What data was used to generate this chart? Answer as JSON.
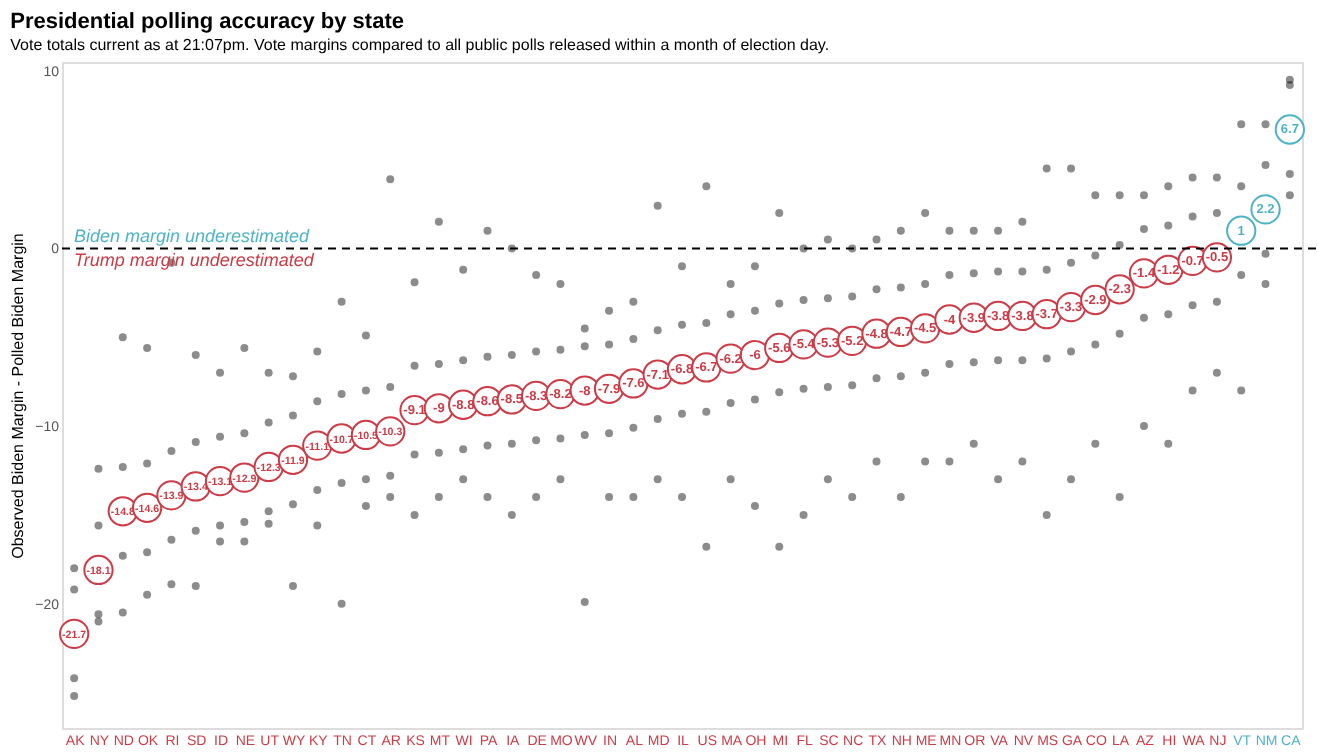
{
  "chart_data": {
    "type": "scatter",
    "title": "Presidential polling accuracy by state",
    "subtitle": "Vote totals current as at 21:07pm. Vote margins compared to all public polls released within a month of election day.",
    "ylabel": "Observed Biden Margin - Polled Biden Margin",
    "categories": [
      "AK",
      "NY",
      "ND",
      "OK",
      "RI",
      "SD",
      "ID",
      "NE",
      "UT",
      "WY",
      "KY",
      "TN",
      "CT",
      "AR",
      "KS",
      "MT",
      "WI",
      "PA",
      "IA",
      "DE",
      "MO",
      "WV",
      "IN",
      "AL",
      "MD",
      "IL",
      "US",
      "MA",
      "OH",
      "MI",
      "FL",
      "SC",
      "NC",
      "TX",
      "NH",
      "ME",
      "MN",
      "OR",
      "VA",
      "NV",
      "MS",
      "GA",
      "CO",
      "LA",
      "AZ",
      "HI",
      "WA",
      "NJ",
      "VT",
      "NM",
      "CA"
    ],
    "ylim": [
      -27,
      10.5
    ],
    "yticks": [
      -20,
      -10,
      0,
      10
    ],
    "grid": false,
    "marker": "circle",
    "ref_lines": [
      {
        "axis": "y",
        "value": 0,
        "line_style": "dashed",
        "color": "#000000"
      }
    ],
    "annotations": [
      "Biden margin underestimated",
      "Trump margin underestimated"
    ],
    "series": [
      {
        "color": "#000000",
        "x": [
          "AK",
          "AK",
          "AK",
          "AK",
          "NY",
          "NY",
          "NY",
          "NY",
          "ND",
          "ND",
          "ND",
          "ND",
          "OK",
          "OK",
          "OK",
          "OK",
          "RI",
          "RI",
          "RI",
          "RI",
          "SD",
          "SD",
          "SD",
          "SD",
          "ID",
          "ID",
          "ID",
          "ID",
          "NE",
          "NE",
          "NE",
          "NE",
          "UT",
          "UT",
          "UT",
          "UT",
          "WY",
          "WY",
          "WY",
          "WY",
          "KY",
          "KY",
          "KY",
          "KY",
          "TN",
          "TN",
          "TN",
          "TN",
          "CT",
          "CT",
          "CT",
          "CT",
          "AR",
          "AR",
          "AR",
          "AR",
          "KS",
          "KS",
          "KS",
          "KS",
          "MT",
          "MT",
          "MT",
          "MT",
          "WI",
          "WI",
          "WI",
          "WI",
          "PA",
          "PA",
          "PA",
          "PA",
          "IA",
          "IA",
          "IA",
          "IA",
          "DE",
          "DE",
          "DE",
          "DE",
          "MO",
          "MO",
          "MO",
          "MO",
          "WV",
          "WV",
          "WV",
          "WV",
          "IN",
          "IN",
          "IN",
          "IN",
          "AL",
          "AL",
          "AL",
          "AL",
          "MD",
          "MD",
          "MD",
          "MD",
          "IL",
          "IL",
          "IL",
          "IL",
          "US",
          "US",
          "US",
          "US",
          "MA",
          "MA",
          "MA",
          "MA",
          "OH",
          "OH",
          "OH",
          "OH",
          "MI",
          "MI",
          "MI",
          "MI",
          "FL",
          "FL",
          "FL",
          "FL",
          "SC",
          "SC",
          "SC",
          "SC",
          "NC",
          "NC",
          "NC",
          "NC",
          "TX",
          "TX",
          "TX",
          "TX",
          "NH",
          "NH",
          "NH",
          "NH",
          "ME",
          "ME",
          "ME",
          "ME",
          "MN",
          "MN",
          "MN",
          "MN",
          "OR",
          "OR",
          "OR",
          "OR",
          "VA",
          "VA",
          "VA",
          "VA",
          "NV",
          "NV",
          "NV",
          "NV",
          "MS",
          "MS",
          "MS",
          "MS",
          "GA",
          "GA",
          "GA",
          "GA",
          "CO",
          "CO",
          "CO",
          "CO",
          "LA",
          "LA",
          "LA",
          "LA",
          "AZ",
          "AZ",
          "AZ",
          "AZ",
          "HI",
          "HI",
          "HI",
          "HI",
          "WA",
          "WA",
          "WA",
          "WA",
          "NJ",
          "NJ",
          "NJ",
          "NJ",
          "VT",
          "VT",
          "VT",
          "VT",
          "NM",
          "NM",
          "NM",
          "NM",
          "CA",
          "CA",
          "CA",
          "CA"
        ],
        "values": [
          -18,
          -19.2,
          -24.2,
          -25.2,
          -12.4,
          -15.6,
          -20.6,
          -21,
          -5,
          -12.3,
          -17.3,
          -20.5,
          -5.6,
          -12.1,
          -17.1,
          -19.5,
          -0.8,
          -11.4,
          -16.4,
          -18.9,
          -6,
          -10.9,
          -15.9,
          -19,
          -7,
          -10.6,
          -15.6,
          -16.5,
          -5.6,
          -10.4,
          -15.4,
          -16.5,
          -7,
          -9.8,
          -14.8,
          -15.5,
          -7.2,
          -9.4,
          -14.4,
          -19,
          -5.8,
          -8.6,
          -13.6,
          -15.6,
          -3,
          -8.2,
          -13.2,
          -20,
          -4.9,
          -8,
          -13,
          -14.5,
          3.9,
          -7.8,
          -12.8,
          -14,
          -1.9,
          -6.6,
          -11.6,
          -15,
          1.5,
          -6.5,
          -11.5,
          -14,
          -1.2,
          -6.3,
          -11.3,
          -13,
          1,
          -6.1,
          -11.1,
          -14,
          0,
          -6,
          -11,
          -15,
          -1.5,
          -5.8,
          -10.8,
          -14,
          -2,
          -5.7,
          -10.7,
          -13,
          -4.5,
          -5.5,
          -10.5,
          -19.9,
          -3.5,
          -5.4,
          -10.4,
          -14,
          -3,
          -5.1,
          -10.1,
          -14,
          2.4,
          -4.6,
          -9.6,
          -13,
          -1,
          -4.3,
          -9.3,
          -14,
          3.5,
          -4.2,
          -9.2,
          -16.8,
          -2,
          -3.7,
          -8.7,
          -13,
          -1,
          -3.5,
          -8.5,
          -14.5,
          2,
          -3.1,
          -8.1,
          -16.8,
          0,
          -2.9,
          -7.9,
          -15,
          0.5,
          -2.8,
          -7.8,
          -13,
          0,
          -2.7,
          -7.7,
          -14,
          0.5,
          -2.3,
          -7.3,
          -12,
          1,
          -2.2,
          -7.2,
          -14,
          2,
          -2,
          -7,
          -12,
          1,
          -1.5,
          -6.5,
          -12,
          1,
          -1.4,
          -6.4,
          -11,
          1,
          -1.3,
          -6.3,
          -13,
          1.5,
          -1.3,
          -6.3,
          -12,
          4.5,
          -1.2,
          -6.2,
          -15,
          4.5,
          -0.8,
          -5.8,
          -13,
          3,
          -0.4,
          -5.4,
          -11,
          3,
          0.2,
          -4.8,
          -14,
          3,
          1.1,
          -3.9,
          -10,
          3.5,
          1.3,
          -3.7,
          -11,
          4,
          1.8,
          -3.2,
          -8,
          4,
          2,
          -3,
          -7,
          7,
          3.5,
          -1.5,
          -8,
          7,
          4.7,
          -0.3,
          -2,
          9.5,
          9.2,
          4.2,
          3
        ]
      },
      {
        "values": [
          -21.7,
          -18.1,
          -14.8,
          -14.6,
          -13.9,
          -13.4,
          -13.1,
          -12.9,
          -12.3,
          -11.9,
          -11.1,
          -10.7,
          -10.5,
          -10.3,
          -9.1,
          -9,
          -8.8,
          -8.6,
          -8.5,
          -8.3,
          -8.2,
          -8,
          -7.9,
          -7.6,
          -7.1,
          -6.8,
          -6.7,
          -6.2,
          -6,
          -5.6,
          -5.4,
          -5.3,
          -5.2,
          -4.8,
          -4.7,
          -4.5,
          -4,
          -3.9,
          -3.8,
          -3.8,
          -3.7,
          -3.3,
          -2.9,
          -2.3,
          -1.4,
          -1.2,
          -0.7,
          -0.5,
          1,
          2.2,
          6.7
        ],
        "value_labels": [
          "-21.7",
          "-18.1",
          "-14.8",
          "-14.6",
          "-13.9",
          "-13.4",
          "-13.1",
          "-12.9",
          "-12.3",
          "-11.9",
          "-11.1",
          "-10.7",
          "-10.5",
          "-10.3",
          "-9.1",
          "-9",
          "-8.8",
          "-8.6",
          "-8.5",
          "-8.3",
          "-8.2",
          "-8",
          "-7.9",
          "-7.6",
          "-7.1",
          "-6.8",
          "-6.7",
          "-6.2",
          "-6",
          "-5.6",
          "-5.4",
          "-5.3",
          "-5.2",
          "-4.8",
          "-4.7",
          "-4.5",
          "-4",
          "-3.9",
          "-3.8",
          "-3.8",
          "-3.7",
          "-3.3",
          "-2.9",
          "-2.3",
          "-1.4",
          "-1.2",
          "-0.7",
          "-0.5",
          "1",
          "2.2",
          "6.7"
        ],
        "colors": [
          "#cc3b46",
          "#cc3b46",
          "#cc3b46",
          "#cc3b46",
          "#cc3b46",
          "#cc3b46",
          "#cc3b46",
          "#cc3b46",
          "#cc3b46",
          "#cc3b46",
          "#cc3b46",
          "#cc3b46",
          "#cc3b46",
          "#cc3b46",
          "#cc3b46",
          "#cc3b46",
          "#cc3b46",
          "#cc3b46",
          "#cc3b46",
          "#cc3b46",
          "#cc3b46",
          "#cc3b46",
          "#cc3b46",
          "#cc3b46",
          "#cc3b46",
          "#cc3b46",
          "#cc3b46",
          "#cc3b46",
          "#cc3b46",
          "#cc3b46",
          "#cc3b46",
          "#cc3b46",
          "#cc3b46",
          "#cc3b46",
          "#cc3b46",
          "#cc3b46",
          "#cc3b46",
          "#cc3b46",
          "#cc3b46",
          "#cc3b46",
          "#cc3b46",
          "#cc3b46",
          "#cc3b46",
          "#cc3b46",
          "#cc3b46",
          "#cc3b46",
          "#cc3b46",
          "#cc3b46",
          "#4fb3c8",
          "#4fb3c8",
          "#4fb3c8"
        ]
      }
    ]
  }
}
